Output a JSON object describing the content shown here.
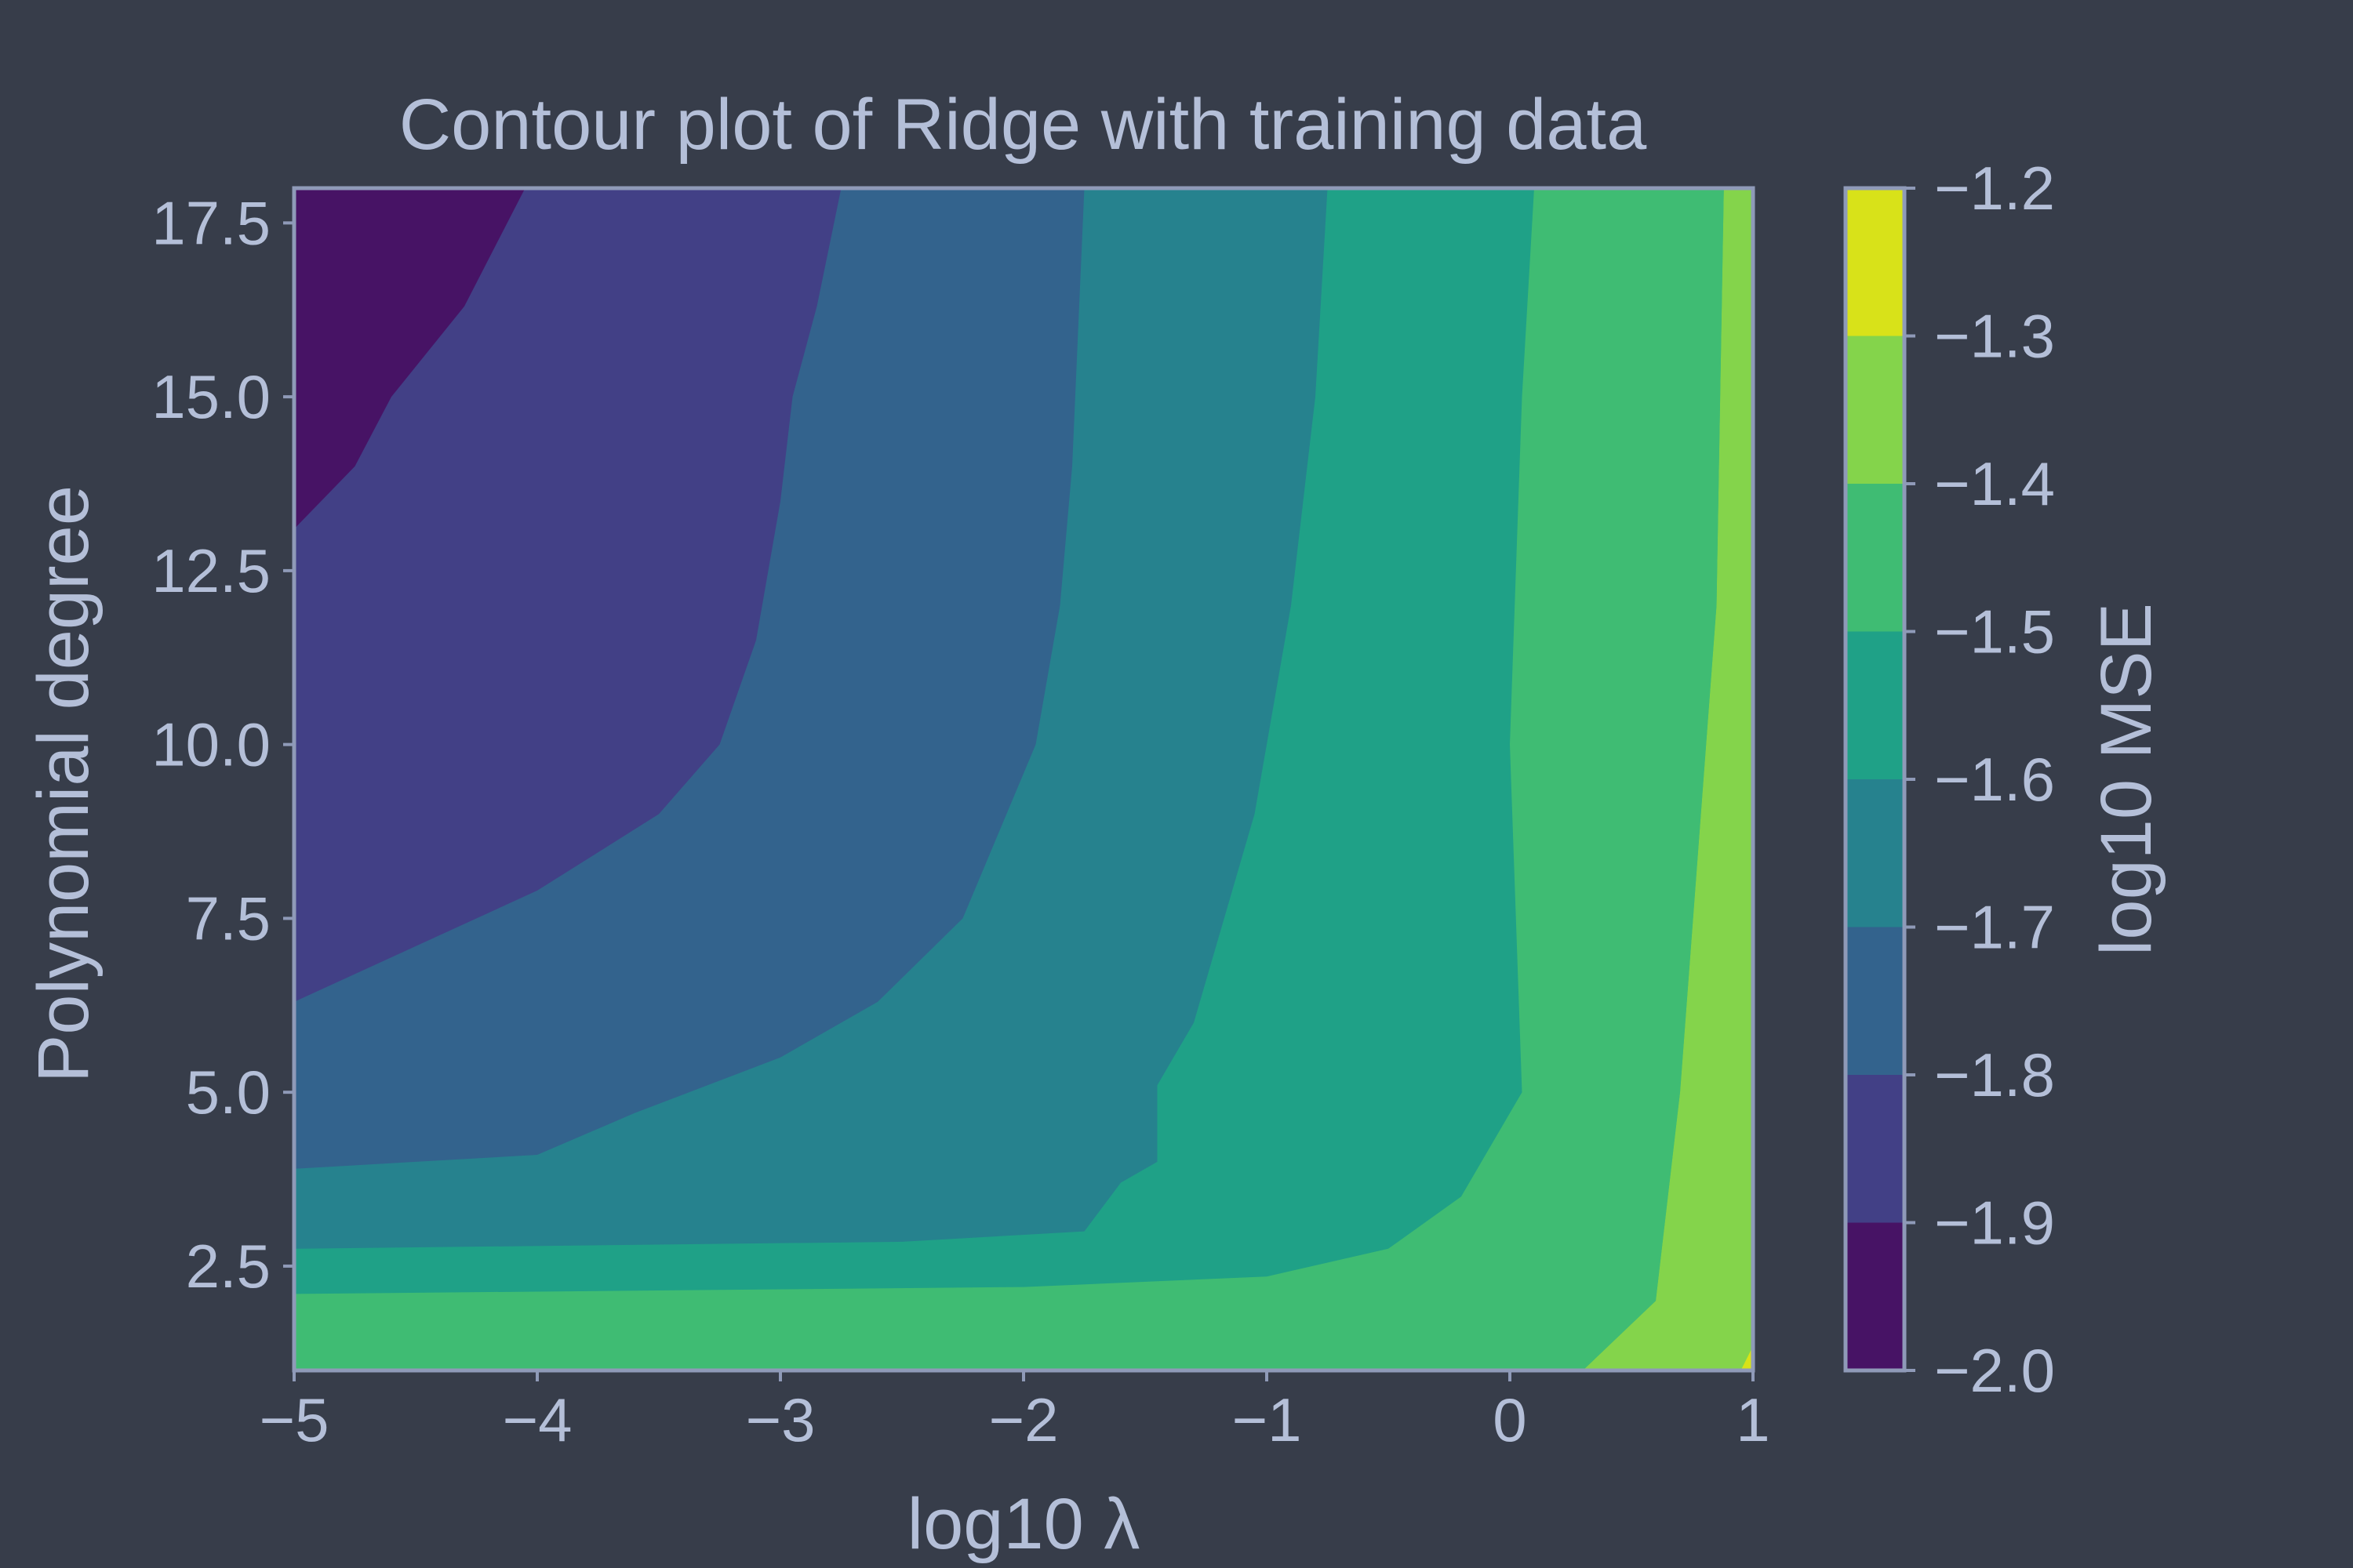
{
  "chart_data": {
    "type": "contour",
    "title": "Contour plot of Ridge with training data",
    "xlabel": "log10 λ",
    "ylabel": "Polynomial degree",
    "xlim": [
      -5,
      1
    ],
    "ylim": [
      1,
      18
    ],
    "x_ticks": [
      -5,
      -4,
      -3,
      -2,
      -1,
      0,
      1
    ],
    "x_tick_labels": [
      "−5",
      "−4",
      "−3",
      "−2",
      "−1",
      "0",
      "1"
    ],
    "y_ticks": [
      2.5,
      5.0,
      7.5,
      10.0,
      12.5,
      15.0,
      17.5
    ],
    "y_tick_labels": [
      "2.5",
      "5.0",
      "7.5",
      "10.0",
      "12.5",
      "15.0",
      "17.5"
    ],
    "colorbar": {
      "label": "log10 MSE",
      "levels": [
        -2.0,
        -1.9,
        -1.8,
        -1.7,
        -1.6,
        -1.5,
        -1.4,
        -1.3,
        -1.2
      ],
      "tick_labels": [
        "−2.0",
        "−1.9",
        "−1.8",
        "−1.7",
        "−1.6",
        "−1.5",
        "−1.4",
        "−1.3",
        "−1.2"
      ],
      "colors": [
        "#471365",
        "#424086",
        "#33638d",
        "#26828e",
        "#1fa187",
        "#3fbc73",
        "#84d44b",
        "#d8e219"
      ]
    },
    "regions": [
      {
        "level": [
          -2.0,
          -1.9
        ],
        "color": "#471365",
        "boundary": [
          [
            -5,
            18
          ],
          [
            -4.05,
            18
          ],
          [
            -4.3,
            16.3
          ],
          [
            -4.6,
            15.0
          ],
          [
            -4.75,
            14.0
          ],
          [
            -5,
            13.1
          ]
        ]
      },
      {
        "level": [
          -1.9,
          -1.8
        ],
        "color": "#424086",
        "boundary": [
          [
            -5,
            18
          ],
          [
            -2.75,
            18
          ],
          [
            -2.85,
            16.3
          ],
          [
            -2.95,
            15.0
          ],
          [
            -3.0,
            13.5
          ],
          [
            -3.1,
            11.5
          ],
          [
            -3.25,
            10.0
          ],
          [
            -3.5,
            9.0
          ],
          [
            -4.0,
            7.9
          ],
          [
            -4.5,
            7.1
          ],
          [
            -5,
            6.3
          ]
        ]
      },
      {
        "level": [
          -1.8,
          -1.7
        ],
        "color": "#33638d",
        "boundary": [
          [
            -5,
            18
          ],
          [
            -1.75,
            18
          ],
          [
            -1.8,
            14.0
          ],
          [
            -1.85,
            12.0
          ],
          [
            -1.95,
            10.0
          ],
          [
            -2.25,
            7.5
          ],
          [
            -2.6,
            6.3
          ],
          [
            -3.0,
            5.5
          ],
          [
            -3.6,
            4.7
          ],
          [
            -4.0,
            4.1
          ],
          [
            -5,
            3.9
          ]
        ]
      },
      {
        "level": [
          -1.7,
          -1.6
        ],
        "color": "#26828e",
        "boundary": [
          [
            -5,
            18
          ],
          [
            -0.75,
            18
          ],
          [
            -0.8,
            15.0
          ],
          [
            -0.9,
            12.0
          ],
          [
            -1.05,
            9.0
          ],
          [
            -1.3,
            6.0
          ],
          [
            -1.45,
            5.1
          ],
          [
            -1.45,
            4.0
          ],
          [
            -1.6,
            3.7
          ],
          [
            -1.75,
            3.0
          ],
          [
            -2.5,
            2.85
          ],
          [
            -5,
            2.75
          ]
        ]
      },
      {
        "level": [
          -1.6,
          -1.5
        ],
        "color": "#1fa187",
        "boundary": [
          [
            -5,
            18
          ],
          [
            0.1,
            18
          ],
          [
            0.05,
            15.0
          ],
          [
            0,
            10.0
          ],
          [
            0.05,
            5.0
          ],
          [
            -0.2,
            3.5
          ],
          [
            -0.5,
            2.75
          ],
          [
            -1.0,
            2.35
          ],
          [
            -2.0,
            2.2
          ],
          [
            -5,
            2.1
          ]
        ]
      },
      {
        "level": [
          -1.5,
          -1.4
        ],
        "color": "#3fbc73",
        "boundary": [
          [
            -5,
            18
          ],
          [
            0.88,
            18
          ],
          [
            0.85,
            12.0
          ],
          [
            0.7,
            5.0
          ],
          [
            0.6,
            2.0
          ],
          [
            0.3,
            1.0
          ],
          [
            -5,
            1.0
          ]
        ]
      },
      {
        "level": [
          -1.4,
          -1.3
        ],
        "color": "#84d44b",
        "boundary": [
          [
            1,
            18
          ],
          [
            0.88,
            18
          ],
          [
            0.85,
            12.0
          ],
          [
            0.7,
            5.0
          ],
          [
            0.6,
            2.0
          ],
          [
            0.3,
            1.0
          ],
          [
            1,
            1.0
          ]
        ]
      },
      {
        "level": [
          -1.3,
          -1.2
        ],
        "color": "#d8e219",
        "boundary": [
          [
            1,
            1.0
          ],
          [
            0.95,
            1.0
          ],
          [
            1,
            1.35
          ]
        ]
      }
    ]
  }
}
